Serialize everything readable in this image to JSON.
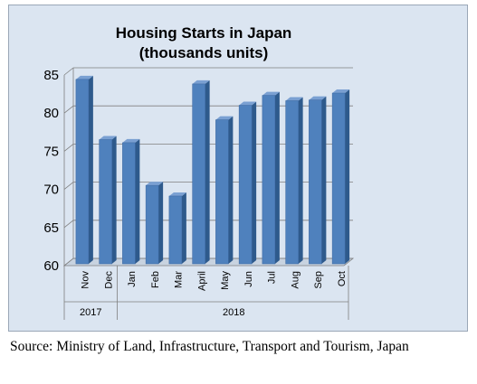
{
  "chart_data": {
    "type": "bar",
    "title": [
      "Housing Starts in Japan",
      "(thousands units)"
    ],
    "categories": [
      "Nov",
      "Dec",
      "Jan",
      "Feb",
      "Mar",
      "April",
      "May",
      "Jun",
      "Jul",
      "Aug",
      "Sep",
      "Oct"
    ],
    "year_groups": [
      {
        "label": "2017",
        "count": 2
      },
      {
        "label": "2018",
        "count": 10
      }
    ],
    "values": [
      84.9,
      77.0,
      76.6,
      71.0,
      69.6,
      84.3,
      79.6,
      81.5,
      82.8,
      82.1,
      82.2,
      83.1
    ],
    "ylim": [
      60,
      85
    ],
    "yticks": [
      60,
      65,
      70,
      75,
      80,
      85
    ],
    "grid": true,
    "bar_color": "#4f81bd"
  },
  "source": "Source: Ministry of Land, Infrastructure, Transport and Tourism, Japan"
}
